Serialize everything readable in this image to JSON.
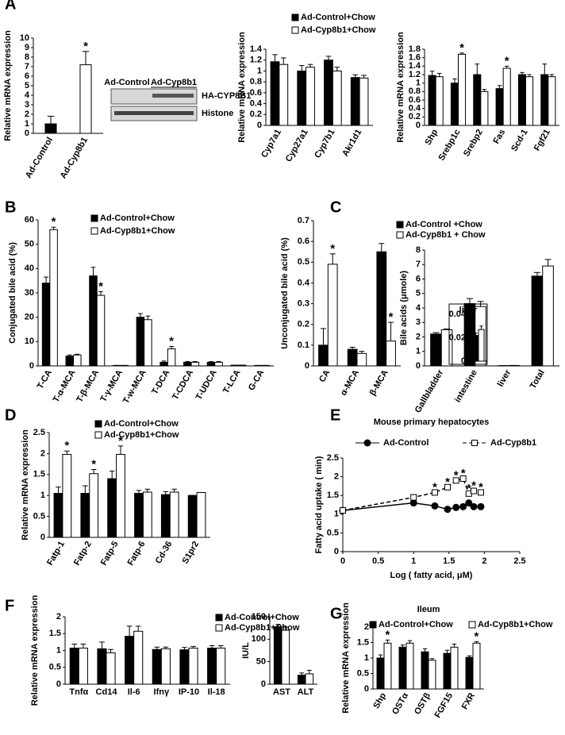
{
  "panel_labels": [
    "A",
    "B",
    "C",
    "D",
    "E",
    "F",
    "G"
  ],
  "blot": {
    "lanes": [
      "Ad-Control",
      "Ad-Cyp8b1"
    ],
    "bands": [
      "HA-CYP8B1",
      "Histone"
    ]
  },
  "chart_data": [
    {
      "type": "bar",
      "y_label": "Relative mRNA expression",
      "categories": [
        "Ad-Control",
        "Ad-Cyp8b1"
      ],
      "series": [
        {
          "colors": [
            "#000000",
            "#ffffff"
          ],
          "values": [
            1,
            7.2
          ],
          "errors": [
            0.8,
            1.4
          ]
        }
      ],
      "ylim": [
        0,
        10
      ],
      "yticks": [
        0,
        1,
        2,
        3,
        4,
        5,
        6,
        7,
        8,
        9,
        10
      ],
      "legend": false,
      "annotations": [
        {
          "text": "*",
          "at": [
            0,
            1
          ]
        }
      ]
    },
    {
      "type": "bar",
      "y_label": "Relative mRNA expression",
      "categories": [
        "Cyp7a1",
        "Cyp27a1",
        "Cyp7b1",
        "Akr1d1"
      ],
      "series": [
        {
          "name": "Ad-Control+Chow",
          "color": "#000000",
          "values": [
            1.17,
            1.0,
            1.2,
            0.88
          ],
          "errors": [
            0.13,
            0.1,
            0.07,
            0.05
          ]
        },
        {
          "name": "Ad-Cyp8b1+Chow",
          "color": "#ffffff",
          "values": [
            1.12,
            1.07,
            1.0,
            0.87
          ],
          "errors": [
            0.12,
            0.05,
            0.07,
            0.05
          ]
        }
      ],
      "ylim": [
        0,
        1.4
      ],
      "yticks": [
        0,
        0.2,
        0.4,
        0.6,
        0.8,
        1,
        1.2,
        1.4
      ],
      "legend": true,
      "annotations": []
    },
    {
      "type": "bar",
      "y_label": "Relative mRNA expression",
      "categories": [
        "Shp",
        "Srebp1c",
        "Srebp2",
        "Fas",
        "Scd-1",
        "Fgf21"
      ],
      "series": [
        {
          "color": "#000000",
          "values": [
            1.18,
            1.0,
            1.2,
            0.87,
            1.2,
            1.2
          ],
          "errors": [
            0.1,
            0.1,
            0.25,
            0.07,
            0.05,
            0.25
          ]
        },
        {
          "color": "#ffffff",
          "values": [
            1.15,
            1.68,
            0.8,
            1.35,
            1.15,
            1.15
          ],
          "errors": [
            0.08,
            0.03,
            0.05,
            0.05,
            0.05,
            0.05
          ]
        }
      ],
      "ylim": [
        0,
        1.8
      ],
      "yticks": [
        0,
        0.2,
        0.4,
        0.6,
        0.8,
        1,
        1.2,
        1.4,
        1.6,
        1.8
      ],
      "legend": false,
      "annotations": [
        {
          "text": "*",
          "at": [
            1,
            1
          ]
        },
        {
          "text": "*",
          "at": [
            1,
            3
          ]
        }
      ]
    },
    {
      "type": "bar",
      "y_label": "Conjugated bile acid (%)",
      "categories": [
        "T-CA",
        "T-α-MCA",
        "T-β-MCA",
        "T-γ-MCA",
        "T-w-MCA",
        "T-DCA",
        "T-CDCA",
        "T-UDCA",
        "T-LCA",
        "G-CA"
      ],
      "series": [
        {
          "name": "Ad-Control+Chow",
          "color": "#000000",
          "values": [
            34,
            4,
            37,
            0.2,
            20,
            1.5,
            1.5,
            1.5,
            0.3,
            0.2
          ],
          "errors": [
            2.5,
            0.5,
            3.5,
            0,
            1.5,
            0.5,
            0.3,
            0.3,
            0,
            0
          ]
        },
        {
          "name": "Ad-Cyp8b1+Chow",
          "color": "#ffffff",
          "values": [
            56,
            4.5,
            29,
            0.2,
            19,
            7,
            1.5,
            1.5,
            0.3,
            0.2
          ],
          "errors": [
            1,
            0.3,
            1.5,
            0,
            1.5,
            1,
            0.3,
            0.3,
            0,
            0
          ]
        }
      ],
      "ylim": [
        0,
        60
      ],
      "yticks": [
        0,
        10,
        20,
        30,
        40,
        50,
        60
      ],
      "legend": true,
      "annotations": [
        {
          "text": "*",
          "at": [
            1,
            0
          ]
        },
        {
          "text": "*",
          "at": [
            1,
            2
          ]
        },
        {
          "text": "*",
          "at": [
            1,
            5
          ]
        }
      ]
    },
    {
      "type": "bar",
      "y_label": "Unconjugated bile acid (%)",
      "categories": [
        "CA",
        "α-MCA",
        "β-MCA"
      ],
      "series": [
        {
          "color": "#000000",
          "values": [
            0.1,
            0.08,
            0.55
          ],
          "errors": [
            0.08,
            0.01,
            0.04
          ]
        },
        {
          "color": "#ffffff",
          "values": [
            0.49,
            0.06,
            0.12
          ],
          "errors": [
            0.05,
            0.01,
            0.09
          ]
        }
      ],
      "ylim": [
        0,
        0.7
      ],
      "yticks": [
        0,
        0.1,
        0.2,
        0.3,
        0.4,
        0.5,
        0.6,
        0.7
      ],
      "legend": false,
      "annotations": [
        {
          "text": "*",
          "at": [
            1,
            0
          ]
        },
        {
          "text": "*",
          "at": [
            1,
            2
          ]
        }
      ]
    },
    {
      "type": "bar",
      "y_label": "Bile acids (μmole)",
      "categories": [
        "Gallbladder",
        "intestine",
        "liver",
        "Total"
      ],
      "series": [
        {
          "name": "Ad-Control +Chow",
          "color": "#000000",
          "values": [
            2.2,
            4.3,
            0.02,
            6.2
          ],
          "errors": [
            0.1,
            0.35,
            0.002,
            0.25
          ]
        },
        {
          "name": "Ad-Cyp8b1 + Chow",
          "color": "#ffffff",
          "values": [
            2.5,
            4.1,
            0.03,
            6.9
          ],
          "errors": [
            0.05,
            0.35,
            0.004,
            0.45
          ]
        }
      ],
      "ylim": [
        0,
        8
      ],
      "yticks": [
        0,
        1,
        2,
        3,
        4,
        5,
        6,
        7,
        8
      ],
      "legend": true,
      "annotations": []
    },
    {
      "type": "bar",
      "title": "liver",
      "categories": [
        null
      ],
      "series": [
        {
          "color": "#000000",
          "values": [
            0.022
          ],
          "errors": [
            0.002
          ]
        },
        {
          "color": "#ffffff",
          "values": [
            0.027
          ],
          "errors": [
            0.003
          ]
        }
      ],
      "ylim": [
        0,
        0.04
      ],
      "yticks": [
        0,
        0.02,
        0.04
      ],
      "legend": false,
      "annotations": []
    },
    {
      "type": "bar",
      "y_label": "Relative mRNA expression",
      "categories": [
        "Fatp-1",
        "Fatp-2",
        "Fatp-5",
        "Fatp-6",
        "Cd-36",
        "S1pr2"
      ],
      "series": [
        {
          "name": "Ad-Control+Chow",
          "color": "#000000",
          "values": [
            1.05,
            1.05,
            1.4,
            1.05,
            1.02,
            1.0
          ],
          "errors": [
            0.15,
            0.18,
            0.18,
            0.07,
            0.07,
            0
          ]
        },
        {
          "name": "Ad-Cyp8b1+Chow",
          "color": "#ffffff",
          "values": [
            1.98,
            1.52,
            1.98,
            1.08,
            1.08,
            1.07
          ],
          "errors": [
            0.08,
            0.1,
            0.2,
            0.07,
            0.07,
            0
          ]
        }
      ],
      "ylim": [
        0,
        2.5
      ],
      "yticks": [
        0,
        0.5,
        1,
        1.5,
        2,
        2.5
      ],
      "legend": true,
      "annotations": [
        {
          "text": "*",
          "at": [
            1,
            0
          ]
        },
        {
          "text": "*",
          "at": [
            1,
            1
          ]
        },
        {
          "text": "*",
          "at": [
            1,
            2
          ]
        }
      ]
    },
    {
      "type": "line",
      "title": "Mouse primary hepatocytes",
      "x_label": "Log ( fatty acid, μM)",
      "y_label": "Fatty acid uptake ( min)",
      "x": [
        0,
        1,
        1.3,
        1.48,
        1.6,
        1.7,
        1.78,
        1.85,
        1.95
      ],
      "series": [
        {
          "name": "Ad-Control",
          "color": "#000000",
          "marker": "circle",
          "dashed": false,
          "values": [
            1.1,
            1.3,
            1.22,
            1.13,
            1.18,
            1.2,
            1.3,
            1.2,
            1.2
          ]
        },
        {
          "name": "Ad-Cyp8b1",
          "color": "#ffffff",
          "marker": "square",
          "dashed": true,
          "values": [
            1.1,
            1.45,
            1.58,
            1.72,
            1.9,
            1.95,
            1.55,
            1.62,
            1.58
          ]
        }
      ],
      "xlim": [
        0,
        2.5
      ],
      "xticks": [
        0,
        0.5,
        1,
        1.5,
        2,
        2.5
      ],
      "ylim": [
        0,
        2.5
      ],
      "yticks": [
        0,
        0.5,
        1,
        1.5,
        2,
        2.5
      ],
      "legend": true,
      "annotations": [
        {
          "text": "*",
          "at": [
            1,
            2
          ]
        },
        {
          "text": "*",
          "at": [
            1,
            3
          ]
        },
        {
          "text": "*",
          "at": [
            1,
            4
          ]
        },
        {
          "text": "*",
          "at": [
            1,
            5
          ]
        },
        {
          "text": "*",
          "at": [
            1,
            6
          ]
        },
        {
          "text": "*",
          "at": [
            1,
            7
          ]
        },
        {
          "text": "*",
          "at": [
            1,
            8
          ]
        }
      ]
    },
    {
      "type": "bar",
      "y_label": "Relative mRNA expression",
      "categories": [
        "Tnfα",
        "Cd14",
        "Il-6",
        "Ifnγ",
        "IP-10",
        "Il-18"
      ],
      "series": [
        {
          "name": "Ad-Control+Chow",
          "color": "#000000",
          "values": [
            1.07,
            1.05,
            1.42,
            1.03,
            1.02,
            1.07
          ],
          "errors": [
            0.12,
            0.2,
            0.3,
            0.07,
            0.07,
            0.07
          ]
        },
        {
          "name": "Ad-Cyp8b1+Chow",
          "color": "#ffffff",
          "values": [
            1.07,
            0.93,
            1.57,
            1.05,
            1.07,
            1.07
          ],
          "errors": [
            0.12,
            0.1,
            0.15,
            0.05,
            0.05,
            0.07
          ]
        }
      ],
      "ylim": [
        0,
        2
      ],
      "yticks": [
        0,
        0.5,
        1,
        1.5,
        2
      ],
      "legend": true,
      "annotations": []
    },
    {
      "type": "bar",
      "y_label": "IU/L",
      "categories": [
        "AST",
        "ALT"
      ],
      "series": [
        {
          "color": "#000000",
          "values": [
            128,
            20
          ],
          "errors": [
            5,
            5
          ]
        },
        {
          "color": "#ffffff",
          "values": [
            120,
            23
          ],
          "errors": [
            7,
            8
          ]
        }
      ],
      "ylim": [
        0,
        150
      ],
      "yticks": [
        0,
        50,
        100,
        150
      ],
      "legend": false,
      "annotations": []
    },
    {
      "type": "bar",
      "title": "Ileum",
      "y_label": "Relative mRNA expression",
      "categories": [
        "Shp",
        "OSTα",
        "OSTβ",
        "FGF15",
        "FXR"
      ],
      "series": [
        {
          "name": "Ad-Control+Chow",
          "color": "#000000",
          "values": [
            1.0,
            1.35,
            1.2,
            1.15,
            1.02
          ],
          "errors": [
            0.1,
            0.07,
            0.1,
            0.1,
            0.05
          ]
        },
        {
          "name": "Ad-Cyp8b1+Chow",
          "color": "#ffffff",
          "values": [
            1.48,
            1.48,
            0.93,
            1.35,
            1.48
          ],
          "errors": [
            0.1,
            0.08,
            0.05,
            0.1,
            0.05
          ]
        }
      ],
      "ylim": [
        0,
        2
      ],
      "yticks": [
        0,
        0.5,
        1,
        1.5,
        2
      ],
      "legend": true,
      "annotations": [
        {
          "text": "*",
          "at": [
            1,
            0
          ]
        },
        {
          "text": "*",
          "at": [
            1,
            4
          ]
        }
      ]
    }
  ]
}
